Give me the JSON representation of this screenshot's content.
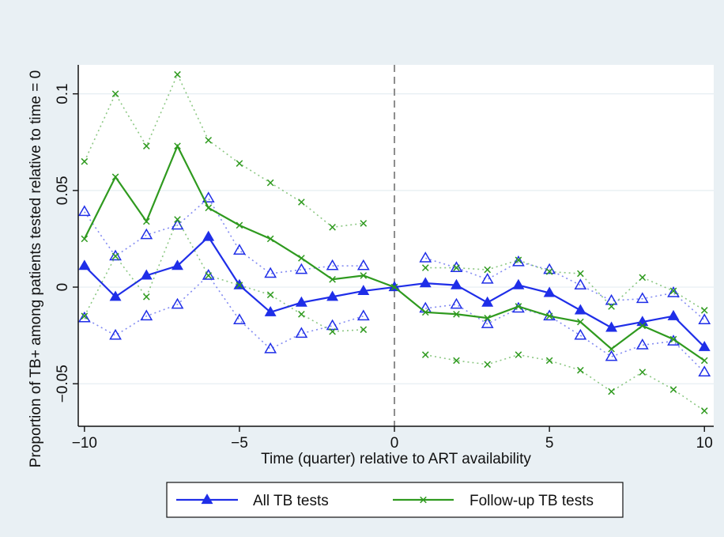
{
  "chart_data": {
    "type": "line",
    "xlabel": "Time (quarter) relative to ART availability",
    "ylabel": "Proportion of TB+ among patients tested relative to time = 0",
    "xlim": [
      -10.2,
      10.3
    ],
    "ylim": [
      -0.072,
      0.115
    ],
    "x_ticks": [
      -10,
      -5,
      0,
      5,
      10
    ],
    "x_tick_labels": [
      "−10",
      "−5",
      "0",
      "5",
      "10"
    ],
    "y_ticks": [
      -0.05,
      0,
      0.05,
      0.1
    ],
    "y_tick_labels": [
      "−0.05",
      "0",
      "0.05",
      "0.1"
    ],
    "reference_line_x": 0,
    "grid": true,
    "legend_position": "bottom",
    "series": [
      {
        "name": "All TB tests",
        "color": "#1f2ee8",
        "marker": "triangle",
        "x": [
          -10,
          -9,
          -8,
          -7,
          -6,
          -5,
          -4,
          -3,
          -2,
          -1,
          0,
          1,
          2,
          3,
          4,
          5,
          6,
          7,
          8,
          9,
          10
        ],
        "values": [
          0.011,
          -0.005,
          0.006,
          0.011,
          0.026,
          0.001,
          -0.013,
          -0.008,
          -0.005,
          -0.002,
          0,
          0.002,
          0.001,
          -0.008,
          0.001,
          -0.003,
          -0.012,
          -0.021,
          -0.018,
          -0.015,
          -0.031
        ],
        "ci_upper": [
          0.039,
          0.016,
          0.027,
          0.032,
          0.046,
          0.019,
          0.007,
          0.009,
          0.011,
          0.011,
          null,
          0.015,
          0.01,
          0.004,
          0.013,
          0.009,
          0.001,
          -0.007,
          -0.006,
          -0.003,
          -0.017
        ],
        "ci_lower": [
          -0.016,
          -0.025,
          -0.015,
          -0.009,
          0.006,
          -0.017,
          -0.032,
          -0.024,
          -0.02,
          -0.015,
          null,
          -0.011,
          -0.009,
          -0.019,
          -0.011,
          -0.015,
          -0.025,
          -0.036,
          -0.03,
          -0.028,
          -0.044
        ]
      },
      {
        "name": "Follow-up TB tests",
        "color": "#2f9a1f",
        "marker": "x",
        "x": [
          -10,
          -9,
          -8,
          -7,
          -6,
          -5,
          -4,
          -3,
          -2,
          -1,
          0,
          1,
          2,
          3,
          4,
          5,
          6,
          7,
          8,
          9,
          10
        ],
        "values": [
          0.025,
          0.057,
          0.034,
          0.073,
          0.041,
          0.032,
          0.025,
          0.015,
          0.004,
          0.006,
          0,
          -0.013,
          -0.014,
          -0.016,
          -0.01,
          -0.015,
          -0.018,
          -0.032,
          -0.02,
          -0.027,
          -0.038
        ],
        "ci_upper": [
          0.065,
          0.1,
          0.073,
          0.11,
          0.076,
          0.064,
          0.054,
          0.044,
          0.031,
          0.033,
          null,
          0.01,
          0.01,
          0.009,
          0.014,
          0.008,
          0.007,
          -0.01,
          0.005,
          -0.002,
          -0.012
        ],
        "ci_lower": [
          -0.015,
          0.016,
          -0.005,
          0.035,
          0.006,
          0.001,
          -0.004,
          -0.014,
          -0.023,
          -0.022,
          null,
          -0.035,
          -0.038,
          -0.04,
          -0.035,
          -0.038,
          -0.043,
          -0.054,
          -0.044,
          -0.053,
          -0.064
        ]
      }
    ]
  }
}
